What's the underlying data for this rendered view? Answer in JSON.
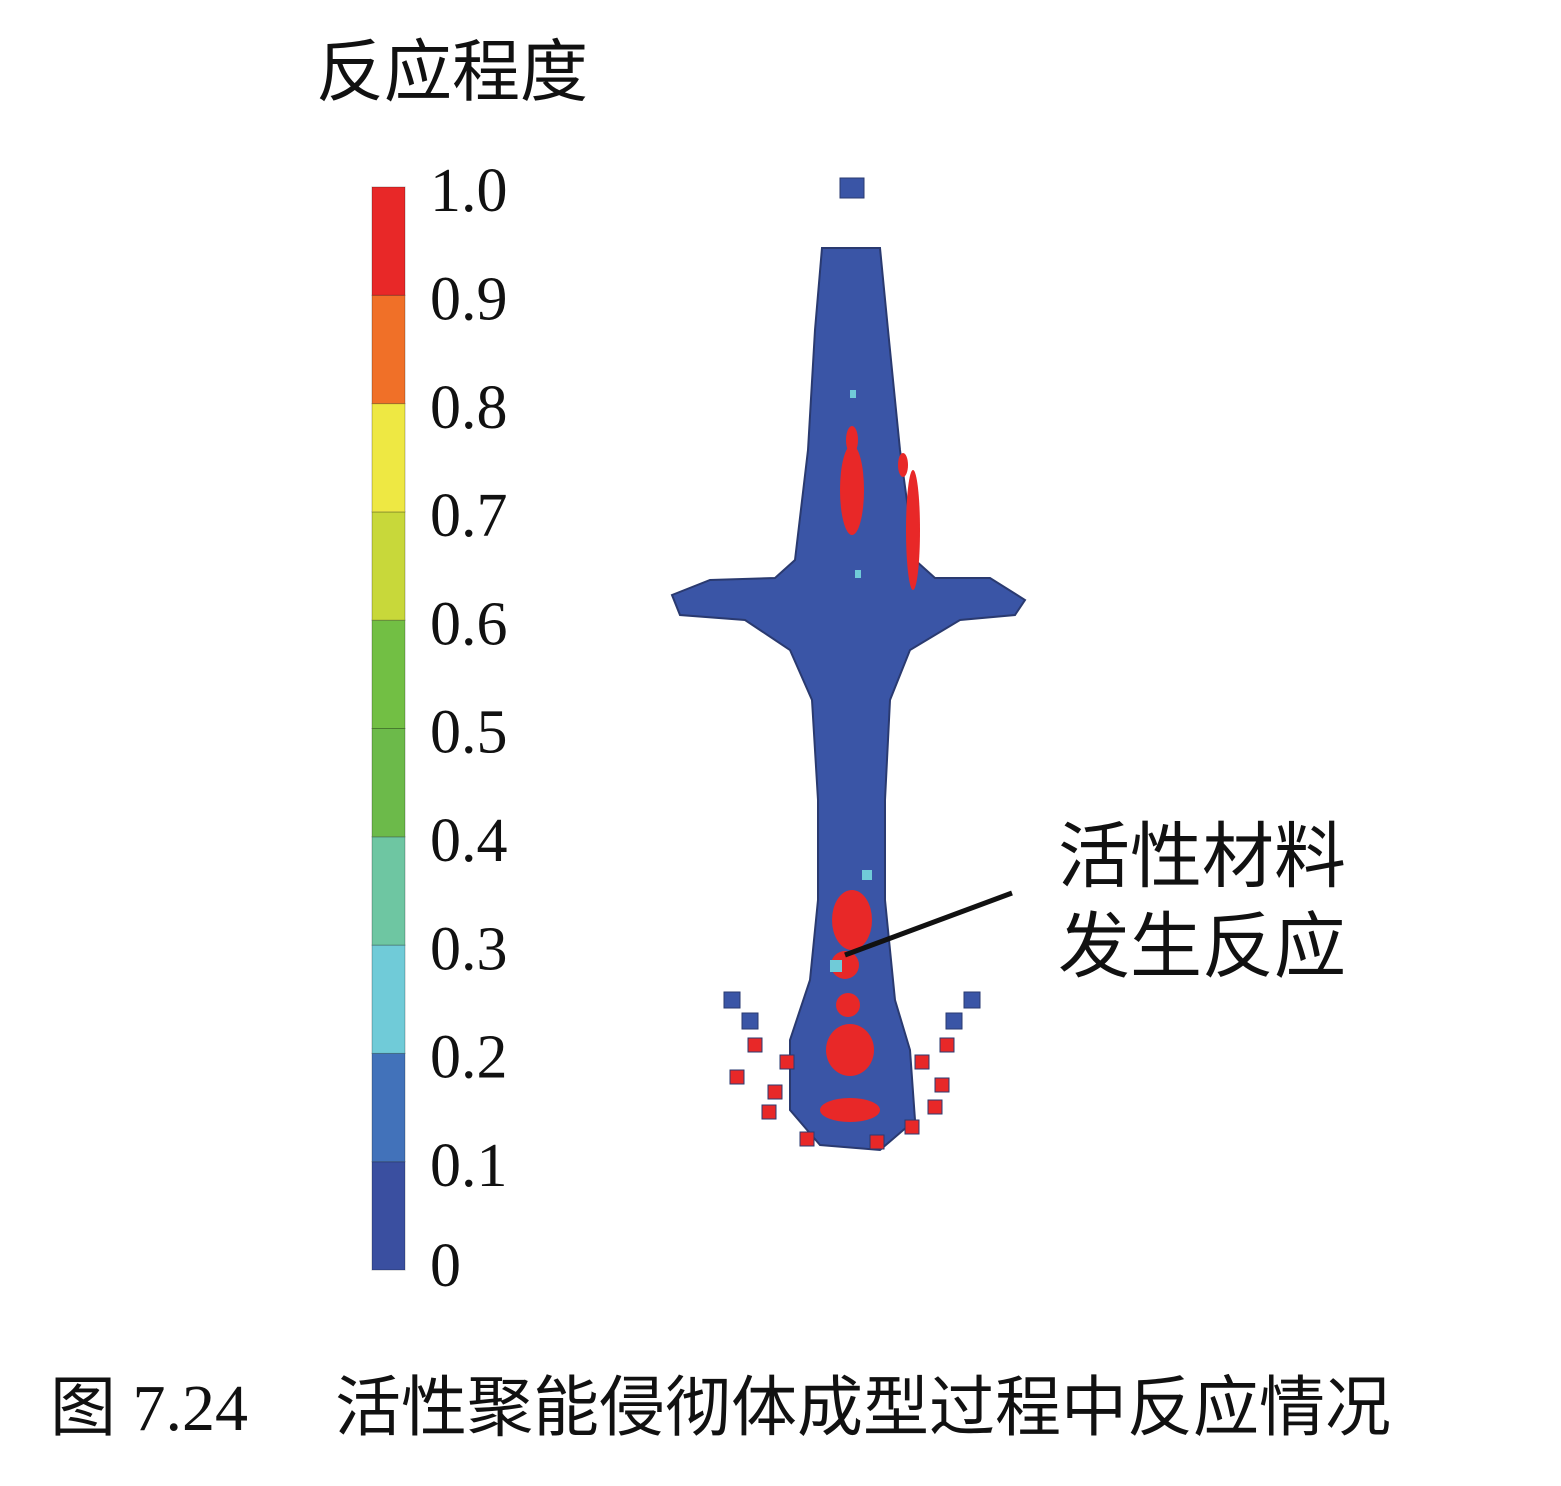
{
  "figure": {
    "colorbar": {
      "title": "反应程度",
      "ticks": [
        "0",
        "0.1",
        "0.2",
        "0.3",
        "0.4",
        "0.5",
        "0.6",
        "0.7",
        "0.8",
        "0.9",
        "1.0"
      ],
      "colors": [
        "#3a4fa0",
        "#4272ba",
        "#70cbd8",
        "#6ec6a2",
        "#6cba4a",
        "#72bf44",
        "#c8d83a",
        "#eee843",
        "#f07028",
        "#e82828"
      ]
    },
    "annotation": {
      "line1": "活性材料",
      "line2": "发生反应"
    },
    "caption": {
      "number": "图 7.24",
      "text": "活性聚能侵彻体成型过程中反应情况"
    }
  }
}
